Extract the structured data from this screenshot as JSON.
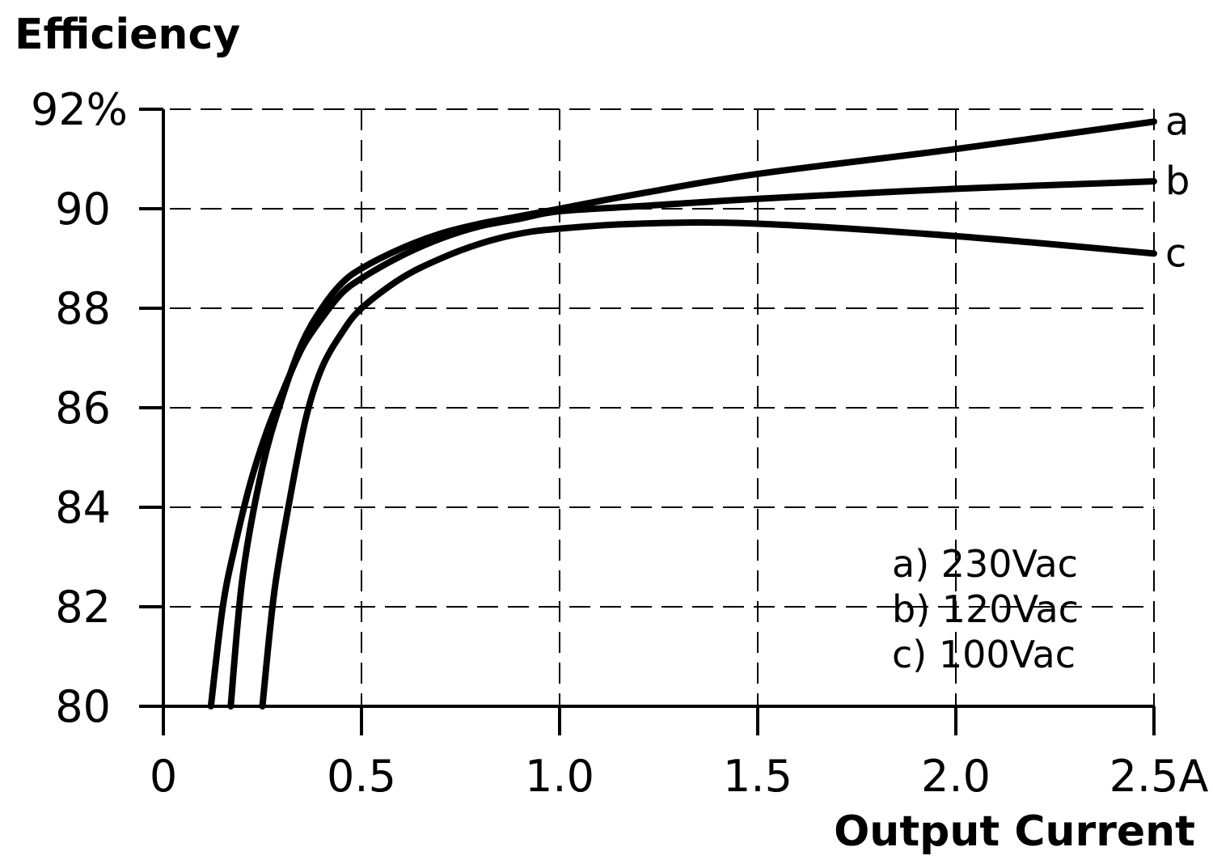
{
  "chart_data": {
    "type": "line",
    "ylabel": "Efficiency",
    "xlabel": "Output Current",
    "xlim": [
      0,
      2.5
    ],
    "ylim": [
      80,
      92
    ],
    "x_ticks": [
      "0",
      "0.5",
      "1.0",
      "1.5",
      "2.0",
      "2.5A"
    ],
    "y_ticks": [
      "80",
      "82",
      "84",
      "86",
      "88",
      "90",
      "92%"
    ],
    "grid": true,
    "legend": [
      "a) 230Vac",
      "b) 120Vac",
      "c) 100Vac"
    ],
    "legend_position": "bottom-right",
    "series": [
      {
        "name": "a",
        "x": [
          0.17,
          0.2,
          0.25,
          0.3,
          0.35,
          0.4,
          0.45,
          0.5,
          0.6,
          0.7,
          0.8,
          0.9,
          1.0,
          1.2,
          1.5,
          2.0,
          2.5
        ],
        "y": [
          80.0,
          82.6,
          84.8,
          86.2,
          87.3,
          88.0,
          88.5,
          88.8,
          89.2,
          89.5,
          89.7,
          89.85,
          90.0,
          90.3,
          90.7,
          91.2,
          91.75
        ]
      },
      {
        "name": "b",
        "x": [
          0.12,
          0.15,
          0.18,
          0.22,
          0.26,
          0.3,
          0.35,
          0.4,
          0.45,
          0.5,
          0.6,
          0.7,
          0.8,
          0.9,
          1.0,
          1.2,
          1.5,
          2.0,
          2.5
        ],
        "y": [
          80.0,
          82.0,
          83.2,
          84.5,
          85.5,
          86.3,
          87.2,
          87.8,
          88.3,
          88.6,
          89.05,
          89.4,
          89.65,
          89.8,
          89.95,
          90.05,
          90.2,
          90.4,
          90.55
        ]
      },
      {
        "name": "c",
        "x": [
          0.25,
          0.28,
          0.32,
          0.36,
          0.4,
          0.45,
          0.5,
          0.6,
          0.7,
          0.8,
          0.9,
          1.0,
          1.2,
          1.5,
          2.0,
          2.5
        ],
        "y": [
          80.0,
          82.3,
          84.2,
          85.8,
          86.8,
          87.5,
          88.0,
          88.6,
          89.0,
          89.3,
          89.5,
          89.6,
          89.7,
          89.7,
          89.45,
          89.1
        ]
      }
    ]
  }
}
